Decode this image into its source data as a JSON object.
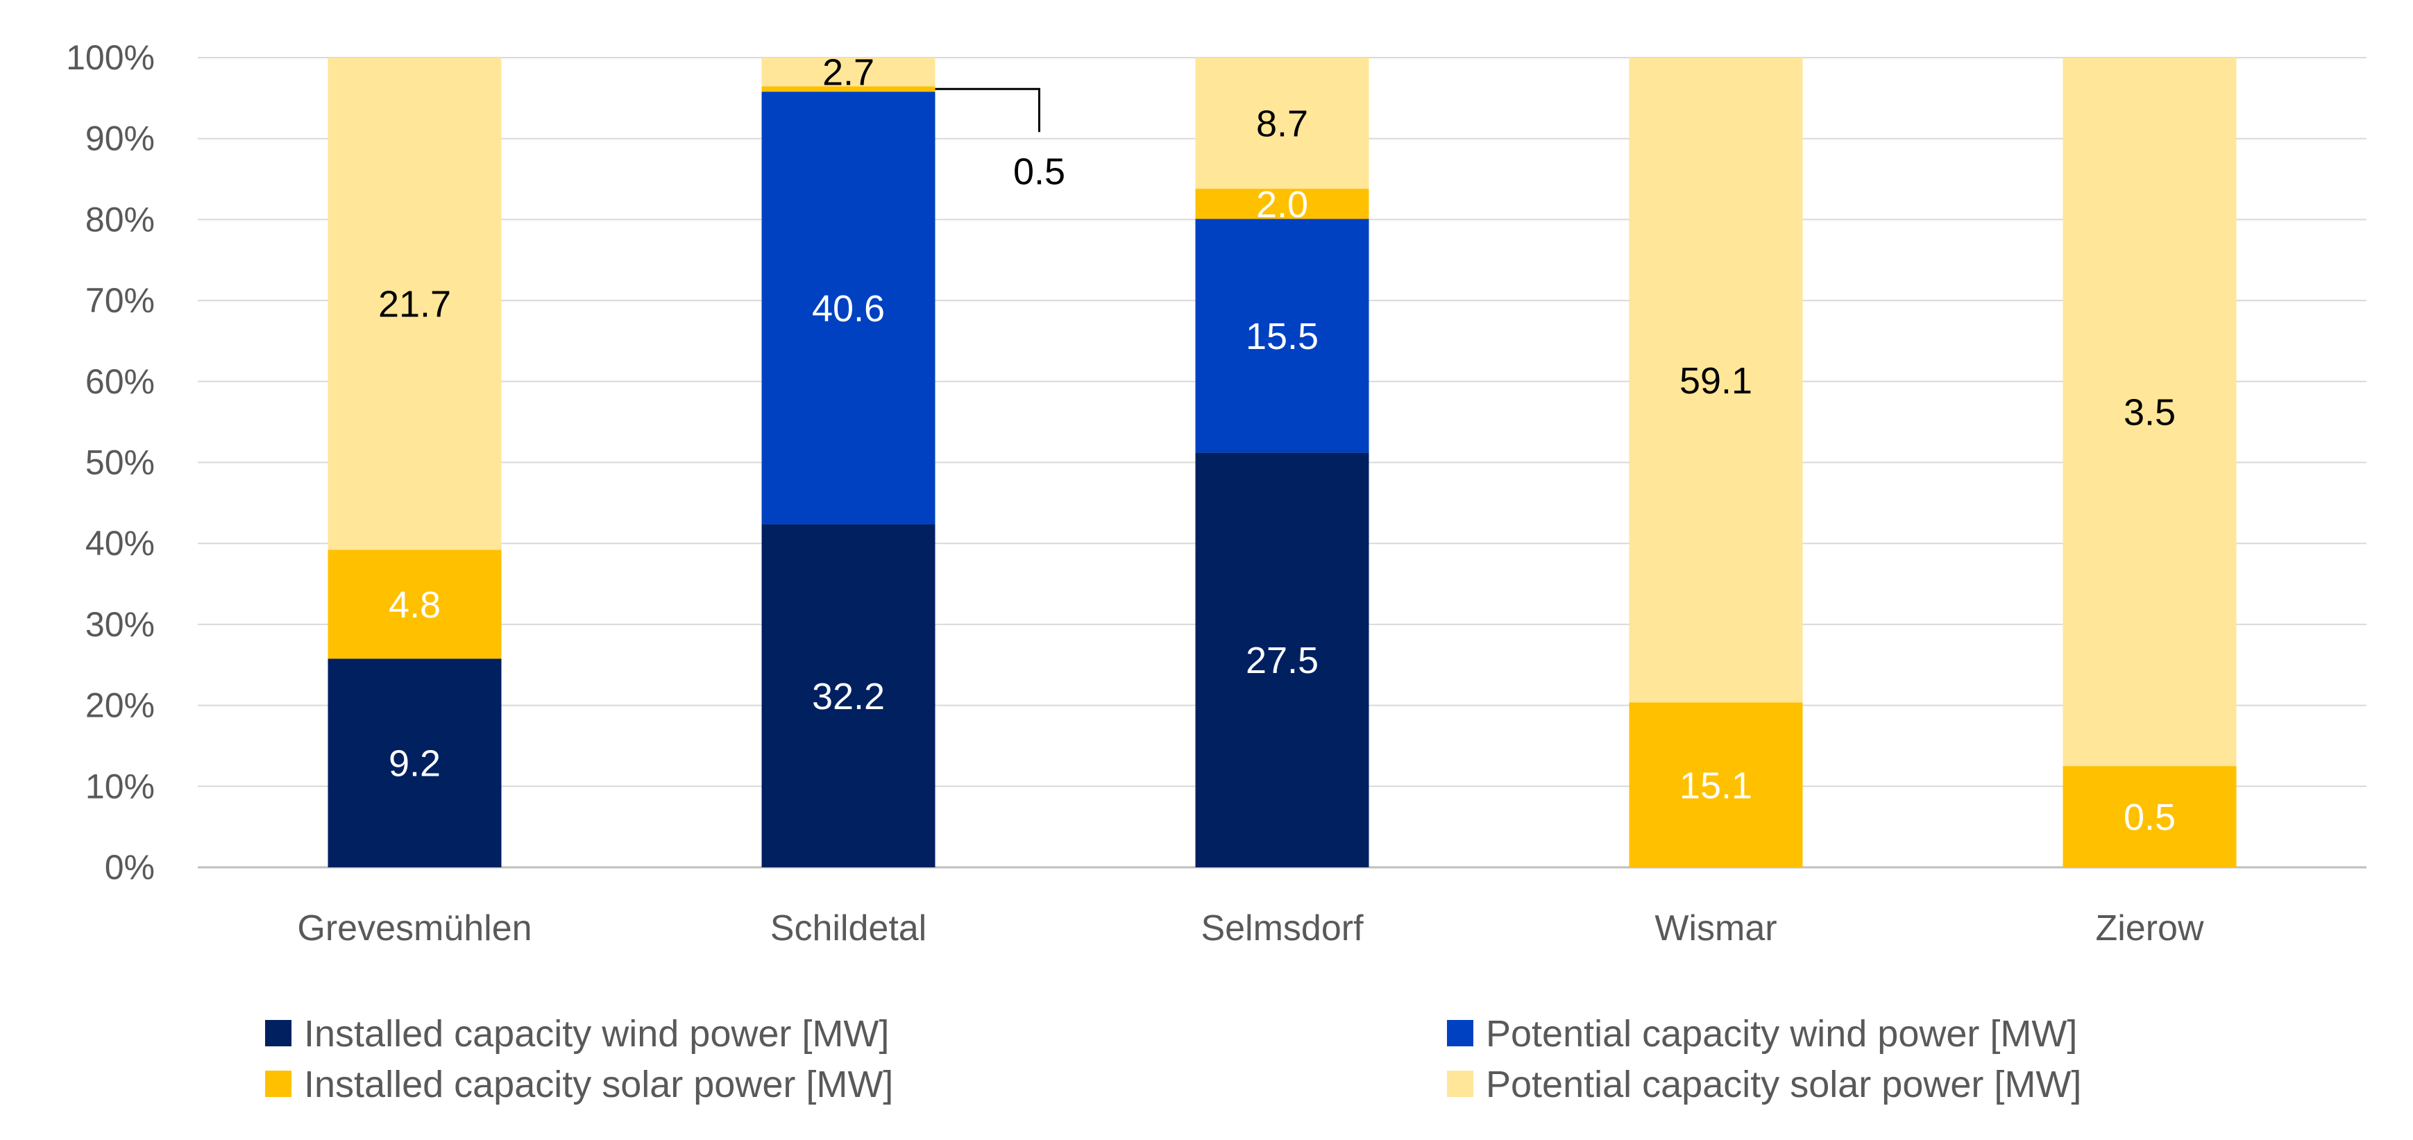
{
  "chart_data": {
    "type": "bar",
    "stacked": "percent",
    "title": "",
    "xlabel": "",
    "ylabel": "",
    "ylim": [
      0,
      100
    ],
    "y_ticks": [
      "0%",
      "10%",
      "20%",
      "30%",
      "40%",
      "50%",
      "60%",
      "70%",
      "80%",
      "90%",
      "100%"
    ],
    "grid": true,
    "legend_position": "bottom",
    "categories": [
      "Grevesmühlen",
      "Schildetal",
      "Selmsdorf",
      "Wismar",
      "Zierow"
    ],
    "series": [
      {
        "name": "Installed capacity wind power [MW]",
        "color": "#002060",
        "label_color": "#ffffff",
        "values": [
          9.2,
          32.2,
          27.5,
          0,
          0
        ],
        "labels": [
          "9.2",
          "32.2",
          "27.5",
          "",
          ""
        ]
      },
      {
        "name": "Potential capacity wind power [MW]",
        "color": "#0041C2",
        "label_color": "#ffffff",
        "values": [
          0,
          40.6,
          15.5,
          0,
          0
        ],
        "labels": [
          "",
          "40.6",
          "15.5",
          "",
          ""
        ]
      },
      {
        "name": "Installed capacity solar power [MW]",
        "color": "#FFC000",
        "label_color": "#ffffff",
        "values": [
          4.8,
          0.5,
          2.0,
          15.1,
          0.5
        ],
        "labels": [
          "4.8",
          "0.5",
          "2.0",
          "15.1",
          "0.5"
        ]
      },
      {
        "name": "Potential capacity solar power [MW]",
        "color": "#FFE699",
        "label_color": "#000000",
        "values": [
          21.7,
          2.7,
          8.7,
          59.1,
          3.5
        ],
        "labels": [
          "21.7",
          "2.7",
          "8.7",
          "59.1",
          "3.5"
        ]
      }
    ],
    "callouts": [
      {
        "series_index": 2,
        "category_index": 1,
        "text": "0.5"
      }
    ]
  }
}
